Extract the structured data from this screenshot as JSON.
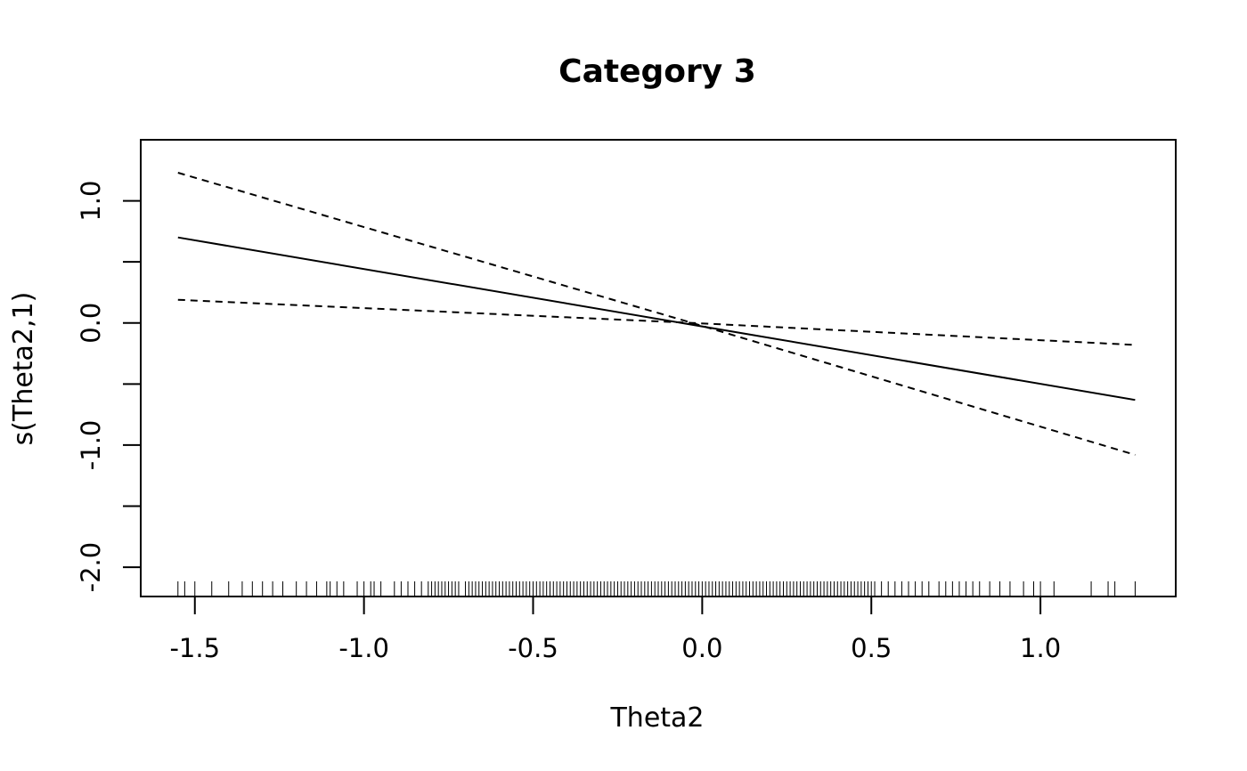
{
  "chart_data": {
    "type": "line",
    "title": "Category 3",
    "xlabel": "Theta2",
    "ylabel": "s(Theta2,1)",
    "xlim": [
      -1.66,
      1.4
    ],
    "ylim": [
      -2.24,
      1.5
    ],
    "x_ticks": [
      -1.5,
      -1.0,
      -0.5,
      0.0,
      0.5,
      1.0
    ],
    "x_tick_labels": [
      "-1.5",
      "-1.0",
      "-0.5",
      "0.0",
      "0.5",
      "1.0"
    ],
    "y_ticks": [
      1.0,
      0.5,
      0.0,
      -0.5,
      -1.0,
      -1.5,
      -2.0
    ],
    "y_tick_labels": [
      "1.0",
      "",
      "0.0",
      "",
      "-1.0",
      "",
      "-2.0"
    ],
    "grid": false,
    "legend": "none",
    "series": [
      {
        "style": "solid",
        "x": [
          -1.55,
          1.28
        ],
        "y": [
          0.7,
          -0.63
        ]
      },
      {
        "style": "dashed",
        "x": [
          -1.55,
          -0.03,
          1.28
        ],
        "y": [
          1.23,
          0.0,
          -1.08
        ]
      },
      {
        "style": "dashed",
        "x": [
          -1.55,
          -0.03,
          1.28
        ],
        "y": [
          0.19,
          0.0,
          -0.18
        ]
      }
    ],
    "rug": [
      -1.55,
      -1.53,
      -1.5,
      -1.45,
      -1.4,
      -1.36,
      -1.33,
      -1.3,
      -1.27,
      -1.24,
      -1.2,
      -1.17,
      -1.14,
      -1.11,
      -1.1,
      -1.08,
      -1.06,
      -1.02,
      -1.0,
      -0.98,
      -0.97,
      -0.95,
      -0.91,
      -0.89,
      -0.87,
      -0.85,
      -0.83,
      -0.81,
      -0.8,
      -0.79,
      -0.78,
      -0.77,
      -0.76,
      -0.75,
      -0.74,
      -0.73,
      -0.72,
      -0.7,
      -0.69,
      -0.68,
      -0.67,
      -0.66,
      -0.65,
      -0.64,
      -0.63,
      -0.62,
      -0.61,
      -0.6,
      -0.59,
      -0.58,
      -0.57,
      -0.56,
      -0.55,
      -0.54,
      -0.53,
      -0.52,
      -0.51,
      -0.5,
      -0.49,
      -0.48,
      -0.47,
      -0.46,
      -0.45,
      -0.44,
      -0.43,
      -0.42,
      -0.41,
      -0.4,
      -0.39,
      -0.38,
      -0.37,
      -0.36,
      -0.35,
      -0.34,
      -0.33,
      -0.32,
      -0.31,
      -0.3,
      -0.29,
      -0.28,
      -0.27,
      -0.26,
      -0.25,
      -0.24,
      -0.23,
      -0.22,
      -0.21,
      -0.2,
      -0.19,
      -0.18,
      -0.17,
      -0.16,
      -0.15,
      -0.14,
      -0.13,
      -0.12,
      -0.11,
      -0.1,
      -0.09,
      -0.08,
      -0.07,
      -0.06,
      -0.05,
      -0.04,
      -0.03,
      -0.02,
      -0.01,
      0.0,
      0.01,
      0.02,
      0.03,
      0.04,
      0.05,
      0.06,
      0.07,
      0.08,
      0.09,
      0.1,
      0.11,
      0.12,
      0.13,
      0.14,
      0.15,
      0.16,
      0.17,
      0.18,
      0.19,
      0.2,
      0.21,
      0.22,
      0.23,
      0.24,
      0.25,
      0.26,
      0.27,
      0.28,
      0.29,
      0.3,
      0.31,
      0.32,
      0.33,
      0.34,
      0.35,
      0.36,
      0.37,
      0.38,
      0.39,
      0.4,
      0.41,
      0.42,
      0.43,
      0.44,
      0.45,
      0.46,
      0.47,
      0.48,
      0.49,
      0.5,
      0.51,
      0.53,
      0.55,
      0.57,
      0.59,
      0.61,
      0.63,
      0.65,
      0.67,
      0.7,
      0.72,
      0.74,
      0.76,
      0.78,
      0.8,
      0.82,
      0.85,
      0.88,
      0.91,
      0.95,
      0.98,
      1.0,
      1.04,
      1.15,
      1.2,
      1.22,
      1.28
    ]
  }
}
